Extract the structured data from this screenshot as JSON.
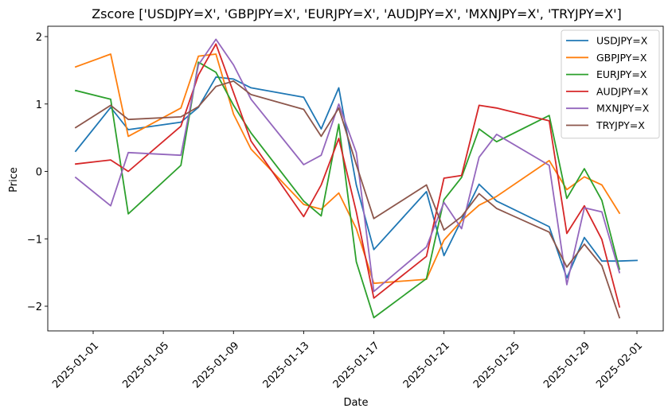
{
  "chart_data": {
    "type": "line",
    "title": "Zscore ['USDJPY=X', 'GBPJPY=X', 'EURJPY=X', 'AUDJPY=X', 'MXNJPY=X', 'TRYJPY=X']",
    "xlabel": "Date",
    "ylabel": "Price",
    "x_range": [
      "2024-12-30",
      "2025-02-01"
    ],
    "ylim": [
      -2.35,
      2.2
    ],
    "x_ticks": [
      "2025-01-01",
      "2025-01-05",
      "2025-01-09",
      "2025-01-13",
      "2025-01-17",
      "2025-01-21",
      "2025-01-25",
      "2025-01-29",
      "2025-02-01"
    ],
    "y_ticks": [
      -2,
      -1,
      0,
      1,
      2
    ],
    "y_tick_labels": [
      "−2",
      "−1",
      "0",
      "1",
      "2"
    ],
    "grid": false,
    "legend_position": "top-right",
    "series": [
      {
        "name": "USDJPY=X",
        "color": "#1f77b4",
        "points": [
          [
            "2024-12-31",
            0.3
          ],
          [
            "2025-01-02",
            0.95
          ],
          [
            "2025-01-03",
            0.62
          ],
          [
            "2025-01-06",
            0.73
          ],
          [
            "2025-01-07",
            0.95
          ],
          [
            "2025-01-08",
            1.4
          ],
          [
            "2025-01-09",
            1.37
          ],
          [
            "2025-01-10",
            1.24
          ],
          [
            "2025-01-13",
            1.1
          ],
          [
            "2025-01-14",
            0.63
          ],
          [
            "2025-01-15",
            1.24
          ],
          [
            "2025-01-16",
            -0.2
          ],
          [
            "2025-01-17",
            -1.16
          ],
          [
            "2025-01-20",
            -0.3
          ],
          [
            "2025-01-21",
            -1.25
          ],
          [
            "2025-01-22",
            -0.72
          ],
          [
            "2025-01-23",
            -0.19
          ],
          [
            "2025-01-24",
            -0.44
          ],
          [
            "2025-01-27",
            -0.82
          ],
          [
            "2025-01-28",
            -1.58
          ],
          [
            "2025-01-29",
            -0.98
          ],
          [
            "2025-01-30",
            -1.33
          ],
          [
            "2025-01-31",
            -1.33
          ],
          [
            "2025-02-01",
            -1.32
          ]
        ]
      },
      {
        "name": "GBPJPY=X",
        "color": "#ff7f0e",
        "points": [
          [
            "2024-12-31",
            1.55
          ],
          [
            "2025-01-02",
            1.74
          ],
          [
            "2025-01-03",
            0.52
          ],
          [
            "2025-01-06",
            0.94
          ],
          [
            "2025-01-07",
            1.71
          ],
          [
            "2025-01-08",
            1.74
          ],
          [
            "2025-01-09",
            0.85
          ],
          [
            "2025-01-10",
            0.33
          ],
          [
            "2025-01-13",
            -0.49
          ],
          [
            "2025-01-14",
            -0.56
          ],
          [
            "2025-01-15",
            -0.32
          ],
          [
            "2025-01-16",
            -0.85
          ],
          [
            "2025-01-17",
            -1.66
          ],
          [
            "2025-01-20",
            -1.6
          ],
          [
            "2025-01-21",
            -1.02
          ],
          [
            "2025-01-22",
            -0.73
          ],
          [
            "2025-01-23",
            -0.5
          ],
          [
            "2025-01-24",
            -0.37
          ],
          [
            "2025-01-27",
            0.16
          ],
          [
            "2025-01-28",
            -0.27
          ],
          [
            "2025-01-29",
            -0.08
          ],
          [
            "2025-01-30",
            -0.2
          ],
          [
            "2025-01-31",
            -0.62
          ]
        ]
      },
      {
        "name": "EURJPY=X",
        "color": "#2ca02c",
        "points": [
          [
            "2024-12-31",
            1.2
          ],
          [
            "2025-01-02",
            1.07
          ],
          [
            "2025-01-03",
            -0.63
          ],
          [
            "2025-01-06",
            0.09
          ],
          [
            "2025-01-07",
            1.62
          ],
          [
            "2025-01-08",
            1.47
          ],
          [
            "2025-01-09",
            0.98
          ],
          [
            "2025-01-10",
            0.57
          ],
          [
            "2025-01-13",
            -0.44
          ],
          [
            "2025-01-14",
            -0.66
          ],
          [
            "2025-01-15",
            0.7
          ],
          [
            "2025-01-16",
            -1.34
          ],
          [
            "2025-01-17",
            -2.17
          ],
          [
            "2025-01-20",
            -1.59
          ],
          [
            "2025-01-21",
            -0.42
          ],
          [
            "2025-01-22",
            -0.09
          ],
          [
            "2025-01-23",
            0.63
          ],
          [
            "2025-01-24",
            0.44
          ],
          [
            "2025-01-27",
            0.83
          ],
          [
            "2025-01-28",
            -0.4
          ],
          [
            "2025-01-29",
            0.04
          ],
          [
            "2025-01-30",
            -0.43
          ],
          [
            "2025-01-31",
            -1.45
          ]
        ]
      },
      {
        "name": "AUDJPY=X",
        "color": "#d62728",
        "points": [
          [
            "2024-12-31",
            0.11
          ],
          [
            "2025-01-02",
            0.17
          ],
          [
            "2025-01-03",
            0.0
          ],
          [
            "2025-01-06",
            0.67
          ],
          [
            "2025-01-07",
            1.43
          ],
          [
            "2025-01-08",
            1.89
          ],
          [
            "2025-01-09",
            1.17
          ],
          [
            "2025-01-10",
            0.45
          ],
          [
            "2025-01-13",
            -0.67
          ],
          [
            "2025-01-14",
            -0.2
          ],
          [
            "2025-01-15",
            0.49
          ],
          [
            "2025-01-16",
            -0.6
          ],
          [
            "2025-01-17",
            -1.88
          ],
          [
            "2025-01-20",
            -1.26
          ],
          [
            "2025-01-21",
            -0.1
          ],
          [
            "2025-01-22",
            -0.06
          ],
          [
            "2025-01-23",
            0.98
          ],
          [
            "2025-01-24",
            0.94
          ],
          [
            "2025-01-27",
            0.75
          ],
          [
            "2025-01-28",
            -0.92
          ],
          [
            "2025-01-29",
            -0.51
          ],
          [
            "2025-01-30",
            -1.01
          ],
          [
            "2025-01-31",
            -2.01
          ]
        ]
      },
      {
        "name": "MXNJPY=X",
        "color": "#9467bd",
        "points": [
          [
            "2024-12-31",
            -0.09
          ],
          [
            "2025-01-02",
            -0.51
          ],
          [
            "2025-01-03",
            0.28
          ],
          [
            "2025-01-06",
            0.24
          ],
          [
            "2025-01-07",
            1.58
          ],
          [
            "2025-01-08",
            1.96
          ],
          [
            "2025-01-09",
            1.58
          ],
          [
            "2025-01-10",
            1.07
          ],
          [
            "2025-01-13",
            0.1
          ],
          [
            "2025-01-14",
            0.24
          ],
          [
            "2025-01-15",
            1.0
          ],
          [
            "2025-01-16",
            0.28
          ],
          [
            "2025-01-17",
            -1.78
          ],
          [
            "2025-01-20",
            -1.12
          ],
          [
            "2025-01-21",
            -0.46
          ],
          [
            "2025-01-22",
            -0.85
          ],
          [
            "2025-01-23",
            0.21
          ],
          [
            "2025-01-24",
            0.55
          ],
          [
            "2025-01-27",
            0.09
          ],
          [
            "2025-01-28",
            -1.68
          ],
          [
            "2025-01-29",
            -0.54
          ],
          [
            "2025-01-30",
            -0.6
          ],
          [
            "2025-01-31",
            -1.5
          ]
        ]
      },
      {
        "name": "TRYJPY=X",
        "color": "#8c564b",
        "points": [
          [
            "2024-12-31",
            0.65
          ],
          [
            "2025-01-02",
            0.98
          ],
          [
            "2025-01-03",
            0.77
          ],
          [
            "2025-01-06",
            0.81
          ],
          [
            "2025-01-07",
            0.96
          ],
          [
            "2025-01-08",
            1.26
          ],
          [
            "2025-01-09",
            1.34
          ],
          [
            "2025-01-10",
            1.14
          ],
          [
            "2025-01-13",
            0.92
          ],
          [
            "2025-01-14",
            0.52
          ],
          [
            "2025-01-15",
            0.94
          ],
          [
            "2025-01-16",
            0.1
          ],
          [
            "2025-01-17",
            -0.7
          ],
          [
            "2025-01-20",
            -0.2
          ],
          [
            "2025-01-21",
            -0.87
          ],
          [
            "2025-01-22",
            -0.67
          ],
          [
            "2025-01-23",
            -0.33
          ],
          [
            "2025-01-24",
            -0.55
          ],
          [
            "2025-01-27",
            -0.9
          ],
          [
            "2025-01-28",
            -1.42
          ],
          [
            "2025-01-29",
            -1.08
          ],
          [
            "2025-01-30",
            -1.4
          ],
          [
            "2025-01-31",
            -2.17
          ]
        ]
      }
    ]
  }
}
